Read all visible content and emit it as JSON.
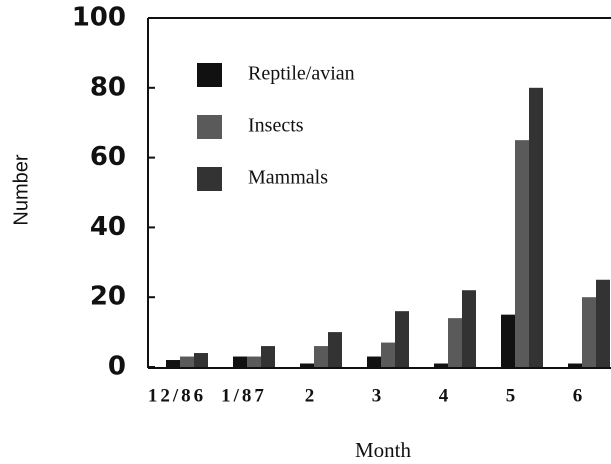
{
  "chart_data": {
    "type": "bar",
    "categories": [
      "12/86",
      "1/87",
      "2",
      "3",
      "4",
      "5",
      "6"
    ],
    "series": [
      {
        "name": "Reptile/avian",
        "color": "#111111",
        "values": [
          2,
          3,
          1,
          3,
          1,
          15,
          1
        ]
      },
      {
        "name": "Insects",
        "color": "#5a5a5a",
        "values": [
          3,
          3,
          6,
          7,
          14,
          65,
          20
        ]
      },
      {
        "name": "Mammals",
        "color": "#333333",
        "values": [
          4,
          6,
          10,
          16,
          22,
          80,
          25
        ]
      }
    ],
    "ylim": [
      0,
      100
    ],
    "yticks": [
      0,
      20,
      40,
      60,
      80,
      100
    ],
    "y_label": "Number",
    "x_label": "Month",
    "legend": "upper left",
    "grid": false
  }
}
